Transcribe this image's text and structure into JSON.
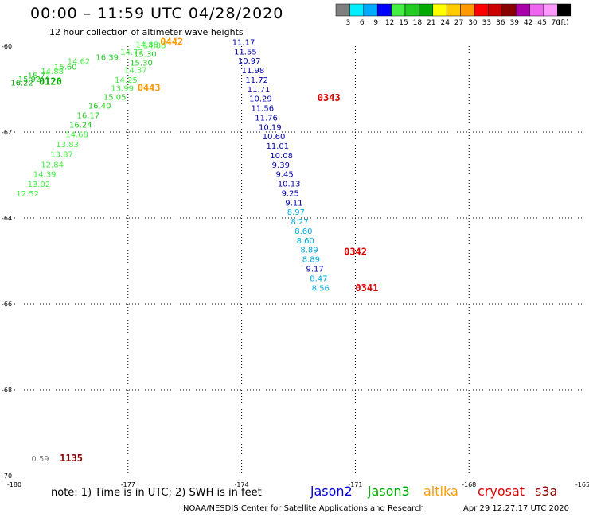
{
  "header": {
    "title": "00:00 – 11:59 UTC 04/28/2020",
    "subtitle": "12 hour collection of altimeter wave heights"
  },
  "colorbar": {
    "colors": [
      "#808080",
      "#00eeff",
      "#00aaff",
      "#0000ff",
      "#44ee44",
      "#22cc22",
      "#00aa00",
      "#ffff00",
      "#ffcc00",
      "#ff9900",
      "#ff0000",
      "#cc0000",
      "#880000",
      "#aa00aa",
      "#ee66ee",
      "#ff99ff",
      "#000000"
    ],
    "labels": [
      "3",
      "6",
      "9",
      "12",
      "15",
      "18",
      "21",
      "24",
      "27",
      "30",
      "33",
      "36",
      "39",
      "42",
      "45",
      "70",
      "(ft)"
    ]
  },
  "footer": {
    "note": "note: 1) Time is in UTC; 2) SWH is in feet",
    "legend": [
      {
        "name": "jason2",
        "color": "#0000dd"
      },
      {
        "name": "jason3",
        "color": "#00aa00"
      },
      {
        "name": "altika",
        "color": "#ff9900"
      },
      {
        "name": "cryosat",
        "color": "#dd0000"
      },
      {
        "name": "s3a",
        "color": "#880000"
      }
    ],
    "credit": "NOAA/NESDIS Center for Satellite Applications and Research",
    "timestamp": "Apr 29 12:27:17 UTC 2020"
  },
  "chart_data": {
    "type": "scatter",
    "xlim": [
      -180,
      -165
    ],
    "ylim": [
      -70,
      -60
    ],
    "xticks": [
      "-180",
      "-177",
      "-174",
      "-171",
      "-168",
      "-165"
    ],
    "yticks": [
      "-60",
      "-62",
      "-64",
      "-66",
      "-68",
      "-70"
    ],
    "grid": true,
    "labels": [
      {
        "x": -176.8,
        "y": -60.03,
        "text": "14.88",
        "color": "#44ee44"
      },
      {
        "x": -176.6,
        "y": -60.05,
        "text": "14.88",
        "color": "#44ee44"
      },
      {
        "x": -176.85,
        "y": -60.25,
        "text": "15.30",
        "color": "#22cc22"
      },
      {
        "x": -177.2,
        "y": -60.2,
        "text": "14.77",
        "color": "#44ee44"
      },
      {
        "x": -176.95,
        "y": -60.45,
        "text": "15.30",
        "color": "#22cc22"
      },
      {
        "x": -177.85,
        "y": -60.32,
        "text": "16.39",
        "color": "#22cc22"
      },
      {
        "x": -178.6,
        "y": -60.42,
        "text": "14.62",
        "color": "#44ee44"
      },
      {
        "x": -178.95,
        "y": -60.55,
        "text": "15.60",
        "color": "#22cc22"
      },
      {
        "x": -179.3,
        "y": -60.65,
        "text": "14.88",
        "color": "#44ee44"
      },
      {
        "x": -179.65,
        "y": -60.75,
        "text": "15.72",
        "color": "#22cc22"
      },
      {
        "x": -179.9,
        "y": -60.83,
        "text": "15.92",
        "color": "#22cc22"
      },
      {
        "x": -180.1,
        "y": -60.92,
        "text": "16.22",
        "color": "#00aa00"
      },
      {
        "x": -177.1,
        "y": -60.62,
        "text": "14.37",
        "color": "#44ee44"
      },
      {
        "x": -177.35,
        "y": -60.85,
        "text": "14.25",
        "color": "#44ee44"
      },
      {
        "x": -177.45,
        "y": -61.05,
        "text": "13.99",
        "color": "#44ee44"
      },
      {
        "x": -177.65,
        "y": -61.25,
        "text": "15.05",
        "color": "#22cc22"
      },
      {
        "x": -178.05,
        "y": -61.45,
        "text": "16.40",
        "color": "#22cc22"
      },
      {
        "x": -178.35,
        "y": -61.68,
        "text": "16.17",
        "color": "#22cc22"
      },
      {
        "x": -178.55,
        "y": -61.9,
        "text": "16.24",
        "color": "#22cc22"
      },
      {
        "x": -178.65,
        "y": -62.12,
        "text": "14.68",
        "color": "#44ee44"
      },
      {
        "x": -178.9,
        "y": -62.35,
        "text": "13.83",
        "color": "#44ee44"
      },
      {
        "x": -179.05,
        "y": -62.58,
        "text": "13.87",
        "color": "#44ee44"
      },
      {
        "x": -179.3,
        "y": -62.82,
        "text": "12.84",
        "color": "#44ee44"
      },
      {
        "x": -179.5,
        "y": -63.05,
        "text": "14.39",
        "color": "#44ee44"
      },
      {
        "x": -179.65,
        "y": -63.28,
        "text": "13.02",
        "color": "#44ee44"
      },
      {
        "x": -179.95,
        "y": -63.5,
        "text": "12.52",
        "color": "#44ee44"
      },
      {
        "x": -174.25,
        "y": -59.97,
        "text": "11.17",
        "color": "#0000aa"
      },
      {
        "x": -174.2,
        "y": -60.19,
        "text": "11.55",
        "color": "#0000aa"
      },
      {
        "x": -174.1,
        "y": -60.41,
        "text": "10.97",
        "color": "#0000aa"
      },
      {
        "x": -174.0,
        "y": -60.63,
        "text": "11.98",
        "color": "#0000aa"
      },
      {
        "x": -173.9,
        "y": -60.85,
        "text": "11.72",
        "color": "#0000aa"
      },
      {
        "x": -173.85,
        "y": -61.07,
        "text": "11.71",
        "color": "#0000aa"
      },
      {
        "x": -173.8,
        "y": -61.29,
        "text": "10.29",
        "color": "#0000aa"
      },
      {
        "x": -173.75,
        "y": -61.51,
        "text": "11.56",
        "color": "#0000aa"
      },
      {
        "x": -173.65,
        "y": -61.73,
        "text": "11.76",
        "color": "#0000aa"
      },
      {
        "x": -173.55,
        "y": -61.95,
        "text": "10.19",
        "color": "#0000aa"
      },
      {
        "x": -173.45,
        "y": -62.17,
        "text": "10.60",
        "color": "#0000aa"
      },
      {
        "x": -173.35,
        "y": -62.39,
        "text": "11.01",
        "color": "#0000aa"
      },
      {
        "x": -173.25,
        "y": -62.61,
        "text": "10.08",
        "color": "#0000aa"
      },
      {
        "x": -173.2,
        "y": -62.83,
        "text": "9.39",
        "color": "#0000aa"
      },
      {
        "x": -173.1,
        "y": -63.05,
        "text": "9.45",
        "color": "#0000aa"
      },
      {
        "x": -173.05,
        "y": -63.27,
        "text": "10.13",
        "color": "#0000aa"
      },
      {
        "x": -172.95,
        "y": -63.49,
        "text": "9.25",
        "color": "#0000aa"
      },
      {
        "x": -172.85,
        "y": -63.71,
        "text": "9.11",
        "color": "#0000aa"
      },
      {
        "x": -172.8,
        "y": -63.93,
        "text": "8.97",
        "color": "#00aadd"
      },
      {
        "x": -172.7,
        "y": -64.15,
        "text": "8.27",
        "color": "#00aadd"
      },
      {
        "x": -172.6,
        "y": -64.37,
        "text": "8.60",
        "color": "#00aadd"
      },
      {
        "x": -172.55,
        "y": -64.59,
        "text": "8.60",
        "color": "#00aadd"
      },
      {
        "x": -172.45,
        "y": -64.81,
        "text": "8.89",
        "color": "#00aadd"
      },
      {
        "x": -172.4,
        "y": -65.03,
        "text": "8.89",
        "color": "#00aadd"
      },
      {
        "x": -172.3,
        "y": -65.25,
        "text": "9.17",
        "color": "#0000aa"
      },
      {
        "x": -172.2,
        "y": -65.47,
        "text": "8.47",
        "color": "#00aadd"
      },
      {
        "x": -172.15,
        "y": -65.69,
        "text": "8.56",
        "color": "#00aadd"
      },
      {
        "x": -179.55,
        "y": -69.67,
        "text": "0.59",
        "color": "#808080"
      }
    ],
    "times": [
      {
        "x": -176.15,
        "y": -59.97,
        "text": "0442",
        "color": "#ff9900"
      },
      {
        "x": -176.75,
        "y": -61.05,
        "text": "0443",
        "color": "#ff9900"
      },
      {
        "x": -179.35,
        "y": -60.9,
        "text": "0120",
        "color": "#00aa00"
      },
      {
        "x": -172.0,
        "y": -61.28,
        "text": "0343",
        "color": "#dd0000"
      },
      {
        "x": -171.3,
        "y": -64.86,
        "text": "0342",
        "color": "#dd0000"
      },
      {
        "x": -171.0,
        "y": -65.7,
        "text": "0341",
        "color": "#dd0000"
      },
      {
        "x": -178.8,
        "y": -69.67,
        "text": "1135",
        "color": "#880000"
      }
    ]
  }
}
